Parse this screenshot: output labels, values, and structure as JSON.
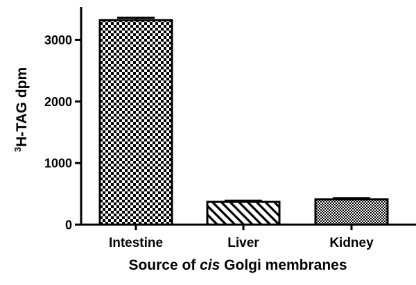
{
  "chart_data": {
    "type": "bar",
    "categories": [
      "Intestine",
      "Liver",
      "Kidney"
    ],
    "values": [
      3320,
      370,
      410
    ],
    "errors": [
      40,
      20,
      20
    ],
    "patterns": [
      "checker-large",
      "diagonal-hatch",
      "checker-fine"
    ],
    "xlabel_parts": [
      "Source of ",
      "cis",
      " Golgi membranes"
    ],
    "ylabel_sup": "3",
    "ylabel_main": "H-TAG dpm",
    "yticks": [
      "0",
      "1000",
      "2000",
      "3000"
    ],
    "ytick_values": [
      0,
      1000,
      2000,
      3000
    ],
    "ylim": [
      0,
      3500
    ],
    "grid": false,
    "bar_edge_color": "#000000"
  }
}
